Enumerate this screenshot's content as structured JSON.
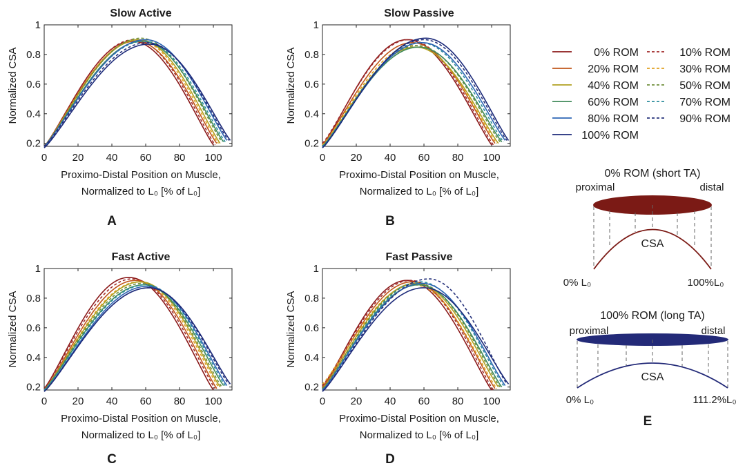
{
  "figure": {
    "panel_letters": [
      "A",
      "B",
      "C",
      "D",
      "E"
    ],
    "legend": {
      "entries": [
        {
          "label": "0% ROM",
          "color": "#8b1a1a",
          "dashed": false
        },
        {
          "label": "10% ROM",
          "color": "#a02828",
          "dashed": true
        },
        {
          "label": "20% ROM",
          "color": "#c0561a",
          "dashed": false
        },
        {
          "label": "30% ROM",
          "color": "#e0a020",
          "dashed": true
        },
        {
          "label": "40% ROM",
          "color": "#b0a020",
          "dashed": false
        },
        {
          "label": "50% ROM",
          "color": "#6e8e3a",
          "dashed": true
        },
        {
          "label": "60% ROM",
          "color": "#3f8a5a",
          "dashed": false
        },
        {
          "label": "70% ROM",
          "color": "#2a8c9c",
          "dashed": true
        },
        {
          "label": "80% ROM",
          "color": "#2c64b4",
          "dashed": false
        },
        {
          "label": "90% ROM",
          "color": "#24307a",
          "dashed": true
        },
        {
          "label": "100% ROM",
          "color": "#1c2a7a",
          "dashed": false
        }
      ]
    },
    "schematic": {
      "short": {
        "title": "0% ROM (short TA)",
        "title_color": "#7b1f1a",
        "fill_color": "#7b1a15",
        "proximal": "proximal",
        "distal": "distal",
        "csa": "CSA",
        "left_label": "0% L₀",
        "right_label": "100%L₀"
      },
      "long": {
        "title": "100% ROM (long TA)",
        "title_color": "#232a78",
        "fill_color": "#232a78",
        "proximal": "proximal",
        "distal": "distal",
        "csa": "CSA",
        "left_label": "0% L₀",
        "right_label": "111.2%L₀"
      }
    }
  },
  "chart_data": [
    {
      "type": "line",
      "panel": "A",
      "title": "Slow Active",
      "ylabel": "Normalized CSA",
      "xlabel_line1": "Proximo-Distal Position on Muscle,",
      "xlabel_line2": "Normalized to L₀ [% of L₀]",
      "xlim": [
        0,
        111
      ],
      "ylim": [
        0.18,
        1.0
      ],
      "xticks": [
        0,
        20,
        40,
        60,
        80,
        100
      ],
      "xtick_labels": [
        "0",
        "20",
        "40",
        "60",
        "80",
        "100"
      ],
      "yticks": [
        0.2,
        0.4,
        0.6,
        0.8,
        1.0
      ],
      "ytick_labels": [
        "0.2",
        "0.4",
        "0.6",
        "0.8",
        "1"
      ],
      "grid": false,
      "series": [
        {
          "name": "0% ROM",
          "x_end": 100,
          "peak_x": 52,
          "peak_y": 0.89,
          "start_y": 0.18,
          "end_y": 0.19
        },
        {
          "name": "10% ROM",
          "x_end": 101,
          "peak_x": 53,
          "peak_y": 0.9,
          "start_y": 0.18,
          "end_y": 0.19
        },
        {
          "name": "20% ROM",
          "x_end": 102,
          "peak_x": 54,
          "peak_y": 0.89,
          "start_y": 0.18,
          "end_y": 0.2
        },
        {
          "name": "30% ROM",
          "x_end": 103,
          "peak_x": 55,
          "peak_y": 0.9,
          "start_y": 0.18,
          "end_y": 0.2
        },
        {
          "name": "40% ROM",
          "x_end": 104,
          "peak_x": 56,
          "peak_y": 0.9,
          "start_y": 0.18,
          "end_y": 0.2
        },
        {
          "name": "50% ROM",
          "x_end": 105,
          "peak_x": 57,
          "peak_y": 0.91,
          "start_y": 0.18,
          "end_y": 0.21
        },
        {
          "name": "60% ROM",
          "x_end": 106,
          "peak_x": 58,
          "peak_y": 0.89,
          "start_y": 0.18,
          "end_y": 0.21
        },
        {
          "name": "70% ROM",
          "x_end": 107,
          "peak_x": 59,
          "peak_y": 0.89,
          "start_y": 0.18,
          "end_y": 0.21
        },
        {
          "name": "80% ROM",
          "x_end": 108,
          "peak_x": 60,
          "peak_y": 0.9,
          "start_y": 0.18,
          "end_y": 0.22
        },
        {
          "name": "90% ROM",
          "x_end": 109,
          "peak_x": 61,
          "peak_y": 0.88,
          "start_y": 0.18,
          "end_y": 0.22
        },
        {
          "name": "100% ROM",
          "x_end": 110,
          "peak_x": 62,
          "peak_y": 0.87,
          "start_y": 0.17,
          "end_y": 0.22
        }
      ]
    },
    {
      "type": "line",
      "panel": "B",
      "title": "Slow Passive",
      "ylabel": "Normalized CSA",
      "xlabel_line1": "Proximo-Distal Position on Muscle,",
      "xlabel_line2": "Normalized to L₀ [% of L₀]",
      "xlim": [
        0,
        111
      ],
      "ylim": [
        0.18,
        1.0
      ],
      "xticks": [
        0,
        20,
        40,
        60,
        80,
        100
      ],
      "xtick_labels": [
        "0",
        "20",
        "40",
        "60",
        "80",
        "100"
      ],
      "yticks": [
        0.2,
        0.4,
        0.6,
        0.8,
        1.0
      ],
      "ytick_labels": [
        "0.2",
        "0.4",
        "0.6",
        "0.8",
        "1"
      ],
      "grid": false,
      "series": [
        {
          "name": "0% ROM",
          "x_end": 100,
          "peak_x": 50,
          "peak_y": 0.9,
          "start_y": 0.19,
          "end_y": 0.19
        },
        {
          "name": "10% ROM",
          "x_end": 101,
          "peak_x": 51,
          "peak_y": 0.9,
          "start_y": 0.2,
          "end_y": 0.19
        },
        {
          "name": "20% ROM",
          "x_end": 102,
          "peak_x": 53,
          "peak_y": 0.88,
          "start_y": 0.19,
          "end_y": 0.2
        },
        {
          "name": "30% ROM",
          "x_end": 103,
          "peak_x": 54,
          "peak_y": 0.86,
          "start_y": 0.19,
          "end_y": 0.2
        },
        {
          "name": "40% ROM",
          "x_end": 104,
          "peak_x": 55,
          "peak_y": 0.85,
          "start_y": 0.18,
          "end_y": 0.2
        },
        {
          "name": "50% ROM",
          "x_end": 105,
          "peak_x": 56,
          "peak_y": 0.86,
          "start_y": 0.18,
          "end_y": 0.21
        },
        {
          "name": "60% ROM",
          "x_end": 106,
          "peak_x": 57,
          "peak_y": 0.85,
          "start_y": 0.18,
          "end_y": 0.21
        },
        {
          "name": "70% ROM",
          "x_end": 107,
          "peak_x": 58,
          "peak_y": 0.88,
          "start_y": 0.18,
          "end_y": 0.21
        },
        {
          "name": "80% ROM",
          "x_end": 108,
          "peak_x": 59,
          "peak_y": 0.88,
          "start_y": 0.17,
          "end_y": 0.22
        },
        {
          "name": "90% ROM",
          "x_end": 109,
          "peak_x": 60,
          "peak_y": 0.9,
          "start_y": 0.17,
          "end_y": 0.22
        },
        {
          "name": "100% ROM",
          "x_end": 110,
          "peak_x": 61,
          "peak_y": 0.91,
          "start_y": 0.17,
          "end_y": 0.22
        }
      ]
    },
    {
      "type": "line",
      "panel": "C",
      "title": "Fast Active",
      "ylabel": "Normalized CSA",
      "xlabel_line1": "Proximo-Distal Position on Muscle,",
      "xlabel_line2": "Normalized to L₀ [% of L₀]",
      "xlim": [
        0,
        111
      ],
      "ylim": [
        0.18,
        1.0
      ],
      "xticks": [
        0,
        20,
        40,
        60,
        80,
        100
      ],
      "xtick_labels": [
        "0",
        "20",
        "40",
        "60",
        "80",
        "100"
      ],
      "yticks": [
        0.2,
        0.4,
        0.6,
        0.8,
        1.0
      ],
      "ytick_labels": [
        "0.2",
        "0.4",
        "0.6",
        "0.8",
        "1"
      ],
      "grid": false,
      "series": [
        {
          "name": "0% ROM",
          "x_end": 100,
          "peak_x": 50,
          "peak_y": 0.94,
          "start_y": 0.19,
          "end_y": 0.18
        },
        {
          "name": "10% ROM",
          "x_end": 101,
          "peak_x": 52,
          "peak_y": 0.93,
          "start_y": 0.19,
          "end_y": 0.19
        },
        {
          "name": "20% ROM",
          "x_end": 102,
          "peak_x": 54,
          "peak_y": 0.92,
          "start_y": 0.18,
          "end_y": 0.19
        },
        {
          "name": "30% ROM",
          "x_end": 103,
          "peak_x": 56,
          "peak_y": 0.91,
          "start_y": 0.18,
          "end_y": 0.2
        },
        {
          "name": "40% ROM",
          "x_end": 104,
          "peak_x": 57,
          "peak_y": 0.91,
          "start_y": 0.18,
          "end_y": 0.2
        },
        {
          "name": "50% ROM",
          "x_end": 105,
          "peak_x": 58,
          "peak_y": 0.9,
          "start_y": 0.18,
          "end_y": 0.2
        },
        {
          "name": "60% ROM",
          "x_end": 106,
          "peak_x": 59,
          "peak_y": 0.89,
          "start_y": 0.18,
          "end_y": 0.21
        },
        {
          "name": "70% ROM",
          "x_end": 107,
          "peak_x": 60,
          "peak_y": 0.89,
          "start_y": 0.18,
          "end_y": 0.21
        },
        {
          "name": "80% ROM",
          "x_end": 108,
          "peak_x": 61,
          "peak_y": 0.88,
          "start_y": 0.17,
          "end_y": 0.21
        },
        {
          "name": "90% ROM",
          "x_end": 109,
          "peak_x": 62,
          "peak_y": 0.87,
          "start_y": 0.17,
          "end_y": 0.22
        },
        {
          "name": "100% ROM",
          "x_end": 110,
          "peak_x": 62,
          "peak_y": 0.87,
          "start_y": 0.17,
          "end_y": 0.22
        }
      ]
    },
    {
      "type": "line",
      "panel": "D",
      "title": "Fast Passive",
      "ylabel": "Normalized CSA",
      "xlabel_line1": "Proximo-Distal Position on Muscle,",
      "xlabel_line2": "Normalized to L₀ [% of L₀]",
      "xlim": [
        0,
        111
      ],
      "ylim": [
        0.18,
        1.0
      ],
      "xticks": [
        0,
        20,
        40,
        60,
        80,
        100
      ],
      "xtick_labels": [
        "0",
        "20",
        "40",
        "60",
        "80",
        "100"
      ],
      "yticks": [
        0.2,
        0.4,
        0.6,
        0.8,
        1.0
      ],
      "ytick_labels": [
        "0.2",
        "0.4",
        "0.6",
        "0.8",
        "1"
      ],
      "grid": false,
      "series": [
        {
          "name": "0% ROM",
          "x_end": 100,
          "peak_x": 50,
          "peak_y": 0.92,
          "start_y": 0.2,
          "end_y": 0.18
        },
        {
          "name": "10% ROM",
          "x_end": 101,
          "peak_x": 52,
          "peak_y": 0.92,
          "start_y": 0.21,
          "end_y": 0.18
        },
        {
          "name": "20% ROM",
          "x_end": 102,
          "peak_x": 53,
          "peak_y": 0.91,
          "start_y": 0.2,
          "end_y": 0.19
        },
        {
          "name": "30% ROM",
          "x_end": 103,
          "peak_x": 54,
          "peak_y": 0.89,
          "start_y": 0.22,
          "end_y": 0.19
        },
        {
          "name": "40% ROM",
          "x_end": 104,
          "peak_x": 55,
          "peak_y": 0.9,
          "start_y": 0.19,
          "end_y": 0.2
        },
        {
          "name": "50% ROM",
          "x_end": 105,
          "peak_x": 56,
          "peak_y": 0.9,
          "start_y": 0.19,
          "end_y": 0.2
        },
        {
          "name": "60% ROM",
          "x_end": 106,
          "peak_x": 57,
          "peak_y": 0.89,
          "start_y": 0.18,
          "end_y": 0.2
        },
        {
          "name": "70% ROM",
          "x_end": 107,
          "peak_x": 58,
          "peak_y": 0.91,
          "start_y": 0.18,
          "end_y": 0.21
        },
        {
          "name": "80% ROM",
          "x_end": 108,
          "peak_x": 59,
          "peak_y": 0.9,
          "start_y": 0.18,
          "end_y": 0.21
        },
        {
          "name": "90% ROM",
          "x_end": 109,
          "peak_x": 63,
          "peak_y": 0.93,
          "start_y": 0.17,
          "end_y": 0.22
        },
        {
          "name": "100% ROM",
          "x_end": 110,
          "peak_x": 60,
          "peak_y": 0.87,
          "start_y": 0.17,
          "end_y": 0.22
        }
      ]
    }
  ]
}
